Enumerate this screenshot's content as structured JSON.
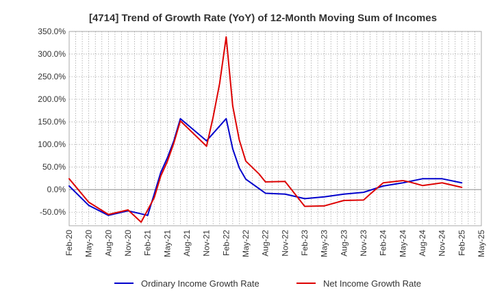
{
  "chart_data": {
    "type": "line",
    "title": "[4714]  Trend of Growth Rate (YoY) of 12-Month Moving Sum of Incomes",
    "xlabel": "",
    "ylabel": "",
    "ylim": [
      -80,
      350
    ],
    "y_ticks": [
      350,
      300,
      250,
      200,
      150,
      100,
      50,
      0,
      -50
    ],
    "y_tick_labels": [
      "350.0%",
      "300.0%",
      "250.0%",
      "200.0%",
      "150.0%",
      "100.0%",
      "50.0%",
      "0.0%",
      "-50.0%"
    ],
    "x_ticks": [
      "Feb-20",
      "May-20",
      "Aug-20",
      "Nov-20",
      "Feb-21",
      "May-21",
      "Aug-21",
      "Nov-21",
      "Feb-22",
      "May-22",
      "Aug-22",
      "Nov-22",
      "Feb-23",
      "May-23",
      "Aug-23",
      "Nov-23",
      "Feb-24",
      "May-24",
      "Aug-24",
      "Nov-24",
      "Feb-25",
      "May-25"
    ],
    "grid": true,
    "legend_position": "bottom",
    "series": [
      {
        "name": "Ordinary Income Growth Rate",
        "color": "#0000cc",
        "points": [
          [
            "Feb-20",
            8
          ],
          [
            "May-20",
            -35
          ],
          [
            "Aug-20",
            -57
          ],
          [
            "Nov-20",
            -47
          ],
          [
            "Feb-21",
            -57
          ],
          [
            "Mar-21",
            -10
          ],
          [
            "Apr-21",
            38
          ],
          [
            "May-21",
            70
          ],
          [
            "Jun-21",
            108
          ],
          [
            "Jul-21",
            157
          ],
          [
            "Nov-21",
            108
          ],
          [
            "Feb-22",
            157
          ],
          [
            "Mar-22",
            90
          ],
          [
            "Apr-22",
            48
          ],
          [
            "May-22",
            23
          ],
          [
            "Aug-22",
            -8
          ],
          [
            "Nov-22",
            -10
          ],
          [
            "Feb-23",
            -20
          ],
          [
            "May-23",
            -16
          ],
          [
            "Aug-23",
            -10
          ],
          [
            "Nov-23",
            -6
          ],
          [
            "Feb-24",
            8
          ],
          [
            "May-24",
            15
          ],
          [
            "Aug-24",
            24
          ],
          [
            "Nov-24",
            24
          ],
          [
            "Feb-25",
            15
          ]
        ]
      },
      {
        "name": "Net Income Growth Rate",
        "color": "#dd0000",
        "points": [
          [
            "Feb-20",
            24
          ],
          [
            "May-20",
            -28
          ],
          [
            "Aug-20",
            -55
          ],
          [
            "Nov-20",
            -45
          ],
          [
            "Jan-21",
            -72
          ],
          [
            "Mar-21",
            -18
          ],
          [
            "Apr-21",
            30
          ],
          [
            "May-21",
            62
          ],
          [
            "Jun-21",
            103
          ],
          [
            "Jul-21",
            152
          ],
          [
            "Nov-21",
            96
          ],
          [
            "Dec-21",
            160
          ],
          [
            "Jan-22",
            235
          ],
          [
            "Feb-22",
            338
          ],
          [
            "Mar-22",
            185
          ],
          [
            "Apr-22",
            110
          ],
          [
            "May-22",
            63
          ],
          [
            "Jul-22",
            35
          ],
          [
            "Aug-22",
            17
          ],
          [
            "Nov-22",
            18
          ],
          [
            "Feb-23",
            -37
          ],
          [
            "May-23",
            -36
          ],
          [
            "Aug-23",
            -24
          ],
          [
            "Nov-23",
            -23
          ],
          [
            "Dec-23",
            -10
          ],
          [
            "Feb-24",
            15
          ],
          [
            "May-24",
            20
          ],
          [
            "Jun-24",
            17
          ],
          [
            "Aug-24",
            9
          ],
          [
            "Nov-24",
            15
          ],
          [
            "Feb-25",
            5
          ]
        ]
      }
    ]
  }
}
